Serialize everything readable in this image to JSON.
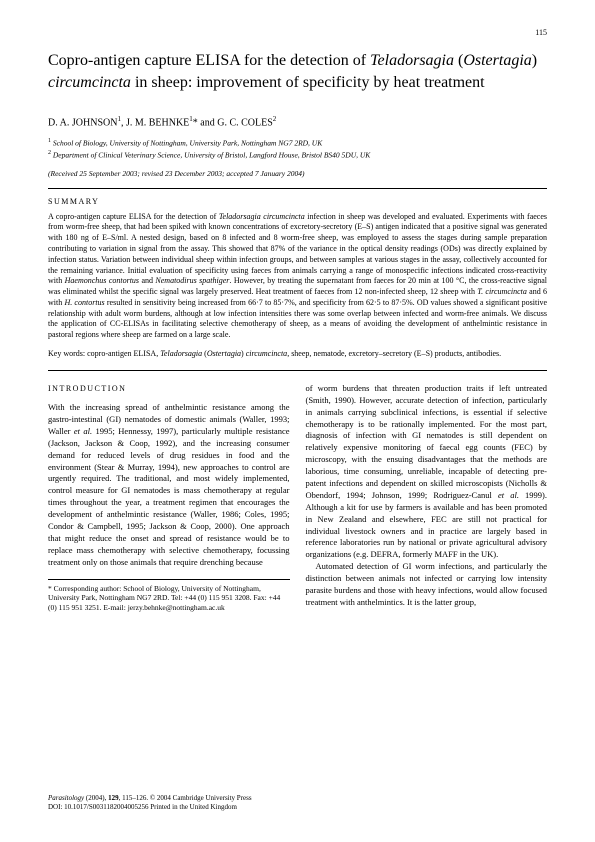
{
  "page_number": "115",
  "title_plain_1": "Copro-antigen capture ELISA for the detection of ",
  "title_italic_1": "Teladorsagia",
  "title_plain_2": " (",
  "title_italic_2": "Ostertagia",
  "title_plain_3": ") ",
  "title_italic_3": "circumcincta",
  "title_plain_4": " in sheep: improvement of specificity by heat treatment",
  "authors_1": "D. A. JOHNSON",
  "authors_sup1": "1",
  "authors_2": ", J. M. BEHNKE",
  "authors_sup2": "1",
  "authors_ast": "*",
  "authors_3": " and G. C. COLES",
  "authors_sup3": "2",
  "aff1_sup": "1",
  "aff1": " School of Biology, University of Nottingham, University Park, Nottingham NG7 2RD, UK",
  "aff2_sup": "2",
  "aff2": " Department of Clinical Veterinary Science, University of Bristol, Langford House, Bristol BS40 5DU, UK",
  "dates": "(Received 25 September 2003; revised 23 December 2003; accepted 7 January 2004)",
  "summary_heading": "SUMMARY",
  "summary_1": "A copro-antigen capture ELISA for the detection of ",
  "summary_i1": "Teladorsagia circumcincta",
  "summary_2": " infection in sheep was developed and evaluated. Experiments with faeces from worm-free sheep, that had been spiked with known concentrations of excretory-secretory (E–S) antigen indicated that a positive signal was generated with 180 ng of E–S/ml. A nested design, based on 8 infected and 8 worm-free sheep, was employed to assess the stages during sample preparation contributing to variation in signal from the assay. This showed that 87% of the variance in the optical density readings (ODs) was directly explained by infection status. Variation between individual sheep within infection groups, and between samples at various stages in the assay, collectively accounted for the remaining variance. Initial evaluation of specificity using faeces from animals carrying a range of monospecific infections indicated cross-reactivity with ",
  "summary_i2": "Haemonchus contortus",
  "summary_3": " and ",
  "summary_i3": "Nematodirus spathiger",
  "summary_4": ". However, by treating the supernatant from faeces for 20 min at 100 °C, the cross-reactive signal was eliminated whilst the specific signal was largely preserved. Heat treatment of faeces from 12 non-infected sheep, 12 sheep with ",
  "summary_i4": "T. circumcincta",
  "summary_5": " and 6 with ",
  "summary_i5": "H. contortus",
  "summary_6": " resulted in sensitivity being increased from 66·7 to 85·7%, and specificity from 62·5 to 87·5%. OD values showed a significant positive relationship with adult worm burdens, although at low infection intensities there was some overlap between infected and worm-free animals. We discuss the application of CC-ELISAs in facilitating selective chemotherapy of sheep, as a means of avoiding the development of anthelmintic resistance in pastoral regions where sheep are farmed on a large scale.",
  "keywords_label": "Key words: ",
  "keywords_1": "copro-antigen ELISA, ",
  "keywords_i1": "Teladorsagia",
  "keywords_2": " (",
  "keywords_i2": "Ostertagia",
  "keywords_3": ") ",
  "keywords_i3": "circumcincta",
  "keywords_4": ", sheep, nematode, excretory–secretory (E–S) products, antibodies.",
  "intro_heading": "INTRODUCTION",
  "col1_p1_a": "With the increasing spread of anthelmintic resistance among the gastro-intestinal (GI) nematodes of domestic animals (Waller, 1993; Waller ",
  "col1_p1_i1": "et al.",
  "col1_p1_b": " 1995; Hennessy, 1997), particularly multiple resistance (Jackson, Jackson & Coop, 1992), and the increasing consumer demand for reduced levels of drug residues in food and the environment (Stear & Murray, 1994), new approaches to control are urgently required. The traditional, and most widely implemented, control measure for GI nematodes is mass chemotherapy at regular times throughout the year, a treatment regimen that encourages the development of anthelmintic resistance (Waller, 1986; Coles, 1995; Condor & Campbell, 1995; Jackson & Coop, 2000). One approach that might reduce the onset and spread of resistance would be to replace mass chemotherapy with selective chemotherapy, focussing treatment only on those animals that require drenching because",
  "col1_fn": "* Corresponding author: School of Biology, University of Nottingham, University Park, Nottingham NG7 2RD. Tel: +44 (0) 115 951 3208. Fax: +44 (0) 115 951 3251. E-mail: jerzy.behnke@nottingham.ac.uk",
  "col2_p1": "of worm burdens that threaten production traits if left untreated (Smith, 1990). However, accurate detection of infection, particularly in animals carrying subclinical infections, is essential if selective chemotherapy is to be rationally implemented. For the most part, diagnosis of infection with GI nematodes is still dependent on relatively expensive monitoring of faecal egg counts (FEC) by microscopy, with the ensuing disadvantages that the methods are laborious, time consuming, unreliable, incapable of detecting pre-patent infections and dependent on skilled microscopists (Nicholls & Obendorf, 1994; Johnson, 1999; Rodriguez-Canul ",
  "col2_p1_i1": "et al.",
  "col2_p1_b": " 1999). Although a kit for use by farmers is available and has been promoted in New Zealand and elsewhere, FEC are still not practical for individual livestock owners and in practice are largely based in reference laboratories run by national or private agricultural advisory organizations (e.g. DEFRA, formerly MAFF in the UK).",
  "col2_p2": "Automated detection of GI worm infections, and particularly the distinction between animals not infected or carrying low intensity parasite burdens and those with heavy infections, would allow focused treatment with anthelmintics. It is the latter group,",
  "footer_1_i": "Parasitology",
  "footer_1": " (2004), ",
  "footer_1_b": "129",
  "footer_1_c": ", 115–126.    © 2004 Cambridge University Press",
  "footer_2": "DOI: 10.1017/S0031182004005256    Printed in the United Kingdom"
}
